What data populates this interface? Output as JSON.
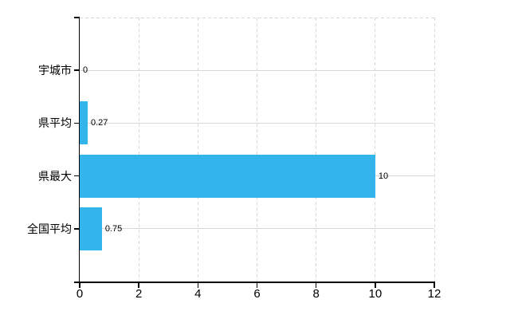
{
  "chart_data": {
    "type": "bar",
    "orientation": "horizontal",
    "title": "",
    "xlabel": "",
    "ylabel": "",
    "categories": [
      "宇城市",
      "県平均",
      "県最大",
      "全国平均"
    ],
    "values": [
      0,
      0.27,
      10,
      0.75
    ],
    "value_labels": [
      "0",
      "0.27",
      "10",
      "0.75"
    ],
    "xlim": [
      0,
      12
    ],
    "xticks": [
      0,
      2,
      4,
      6,
      8,
      10,
      12
    ],
    "xtick_labels": [
      "0",
      "2",
      "4",
      "6",
      "8",
      "10",
      "12"
    ],
    "legend": "none",
    "grid": {
      "vertical_style": "dashed",
      "horizontal_style": "solid",
      "top_border_style": "dashed"
    },
    "colors": {
      "bar": "#33b5ec",
      "grid": "#d8d8d8",
      "axis": "#000000",
      "text": "#000000",
      "background": "#ffffff"
    }
  }
}
